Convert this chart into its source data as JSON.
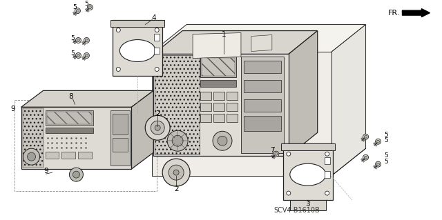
{
  "background_color": "#ffffff",
  "diagram_code": "SCV4-B1610B",
  "fr_label": "FR.",
  "line_color": "#222222",
  "light_line": "#888888",
  "fill_light": "#e8e6e0",
  "fill_medium": "#d0cdc6",
  "fill_dark": "#b0ada8"
}
